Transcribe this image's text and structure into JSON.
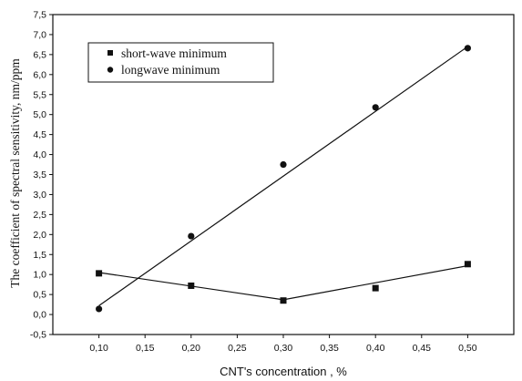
{
  "chart_data": {
    "type": "scatter",
    "xlabel": "CNT's concentration , %",
    "ylabel": "The coefficient of spectral sensitivity, nm/ppm",
    "xlim": [
      0.05,
      0.55
    ],
    "ylim": [
      -0.5,
      7.5
    ],
    "x_ticks": [
      "0,10",
      "0,15",
      "0,20",
      "0,25",
      "0,30",
      "0,35",
      "0,40",
      "0,45",
      "0,50"
    ],
    "x_tick_values": [
      0.1,
      0.15,
      0.2,
      0.25,
      0.3,
      0.35,
      0.4,
      0.45,
      0.5
    ],
    "y_ticks": [
      "-0,5",
      "0,0",
      "0,5",
      "1,0",
      "1,5",
      "2,0",
      "2,5",
      "3,0",
      "3,5",
      "4,0",
      "4,5",
      "5,0",
      "5,5",
      "6,0",
      "6,5",
      "7,0",
      "7,5"
    ],
    "y_tick_values": [
      -0.5,
      0.0,
      0.5,
      1.0,
      1.5,
      2.0,
      2.5,
      3.0,
      3.5,
      4.0,
      4.5,
      5.0,
      5.5,
      6.0,
      6.5,
      7.0,
      7.5
    ],
    "grid": false,
    "legend_position": "top-left",
    "series": [
      {
        "name": "short-wave minimum",
        "marker": "square",
        "color": "#111111",
        "x": [
          0.1,
          0.2,
          0.3,
          0.4,
          0.5
        ],
        "y": [
          1.03,
          0.72,
          0.35,
          0.66,
          1.26
        ],
        "fit": "piecewise",
        "fit_points": [
          [
            0.1,
            1.05
          ],
          [
            0.3,
            0.37
          ],
          [
            0.5,
            1.22
          ]
        ]
      },
      {
        "name": "longwave minimum",
        "marker": "circle",
        "color": "#111111",
        "x": [
          0.1,
          0.2,
          0.3,
          0.4,
          0.5
        ],
        "y": [
          0.14,
          1.96,
          3.75,
          5.18,
          6.66
        ],
        "fit": "linear",
        "fit_points": [
          [
            0.1,
            0.22
          ],
          [
            0.5,
            6.7
          ]
        ]
      }
    ]
  }
}
